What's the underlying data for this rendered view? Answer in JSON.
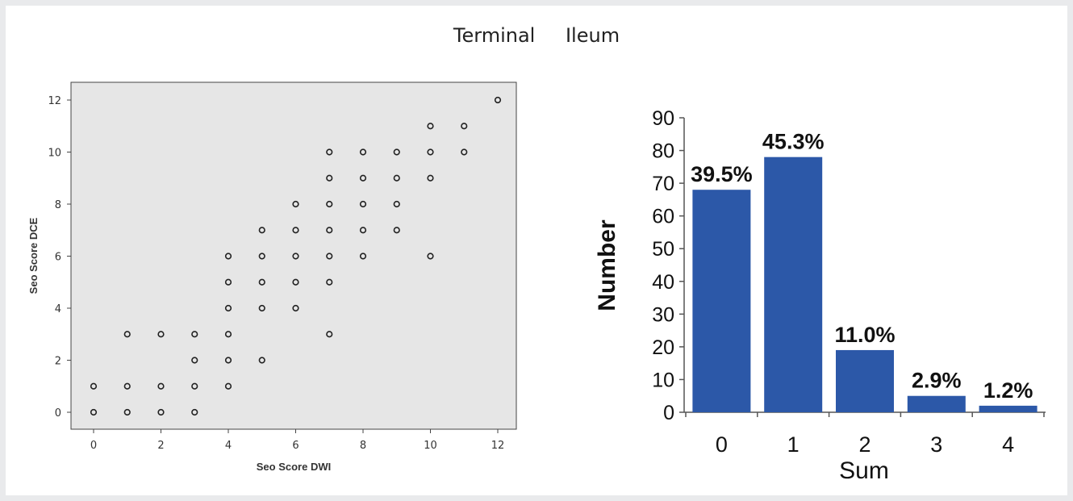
{
  "title": "Terminal  Ileum",
  "chart_data": [
    {
      "type": "scatter",
      "xlabel": "Seo Score DWI",
      "ylabel": "Seo Score DCE",
      "xlim": [
        0,
        12
      ],
      "ylim": [
        0,
        12
      ],
      "xticks": [
        "0",
        "2",
        "4",
        "6",
        "8",
        "10",
        "12"
      ],
      "yticks": [
        "0",
        "2",
        "4",
        "6",
        "8",
        "10",
        "12"
      ],
      "background": "#e6e6e6",
      "grid": false,
      "points": [
        [
          0,
          0
        ],
        [
          0,
          1
        ],
        [
          1,
          0
        ],
        [
          1,
          1
        ],
        [
          1,
          3
        ],
        [
          2,
          0
        ],
        [
          2,
          1
        ],
        [
          2,
          3
        ],
        [
          3,
          0
        ],
        [
          3,
          1
        ],
        [
          3,
          2
        ],
        [
          3,
          3
        ],
        [
          4,
          1
        ],
        [
          4,
          2
        ],
        [
          4,
          3
        ],
        [
          4,
          4
        ],
        [
          4,
          5
        ],
        [
          4,
          6
        ],
        [
          5,
          2
        ],
        [
          5,
          4
        ],
        [
          5,
          5
        ],
        [
          5,
          6
        ],
        [
          5,
          7
        ],
        [
          6,
          4
        ],
        [
          6,
          5
        ],
        [
          6,
          6
        ],
        [
          6,
          7
        ],
        [
          6,
          8
        ],
        [
          7,
          3
        ],
        [
          7,
          5
        ],
        [
          7,
          6
        ],
        [
          7,
          7
        ],
        [
          7,
          8
        ],
        [
          7,
          9
        ],
        [
          7,
          10
        ],
        [
          8,
          6
        ],
        [
          8,
          7
        ],
        [
          8,
          8
        ],
        [
          8,
          9
        ],
        [
          8,
          10
        ],
        [
          9,
          7
        ],
        [
          9,
          8
        ],
        [
          9,
          9
        ],
        [
          9,
          10
        ],
        [
          10,
          6
        ],
        [
          10,
          9
        ],
        [
          10,
          10
        ],
        [
          10,
          11
        ],
        [
          11,
          10
        ],
        [
          11,
          11
        ],
        [
          12,
          12
        ]
      ]
    },
    {
      "type": "bar",
      "xlabel": "Sum",
      "ylabel": "Number",
      "categories": [
        "0",
        "1",
        "2",
        "3",
        "4"
      ],
      "values": [
        68,
        78,
        19,
        5,
        2
      ],
      "data_labels": [
        "39.5%",
        "45.3%",
        "11.0%",
        "2.9%",
        "1.2%"
      ],
      "ylim": [
        0,
        90
      ],
      "yticks": [
        "0",
        "10",
        "20",
        "30",
        "40",
        "50",
        "60",
        "70",
        "80",
        "90"
      ],
      "bar_color": "#2c58a8",
      "grid": false
    }
  ]
}
